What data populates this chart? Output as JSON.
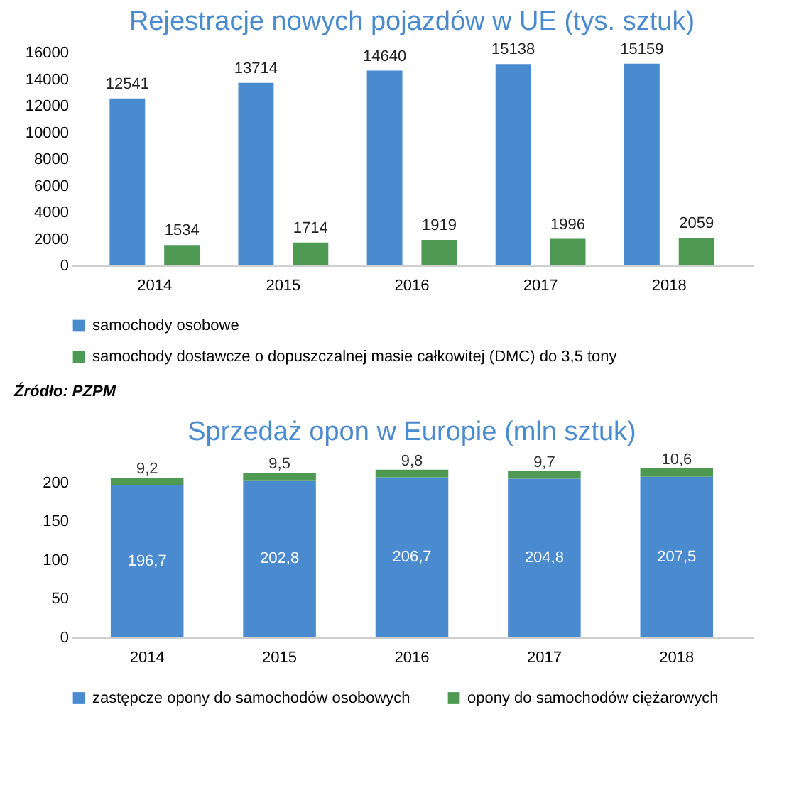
{
  "chart_data": [
    {
      "type": "bar",
      "title": "Rejestracje nowych pojazdów w UE (tys. sztuk)",
      "categories": [
        "2014",
        "2015",
        "2016",
        "2017",
        "2018"
      ],
      "series": [
        {
          "name": "samochody osobowe",
          "color": "#4a8bd0",
          "values": [
            12541,
            13714,
            14640,
            15138,
            15159
          ]
        },
        {
          "name": "samochody dostawcze o dopuszczalnej masie całkowitej (DMC) do 3,5 tony",
          "color": "#4e9a52",
          "values": [
            1534,
            1714,
            1919,
            1996,
            2059
          ]
        }
      ],
      "ylim": [
        0,
        16000
      ],
      "yticks": [
        0,
        2000,
        4000,
        6000,
        8000,
        10000,
        12000,
        14000,
        16000
      ],
      "grid": false,
      "legend": "bottom",
      "data_labels": true,
      "annotations": [
        "Źródło: PZPM"
      ]
    },
    {
      "type": "bar",
      "title": "Sprzedaż opon w Europie (mln sztuk)",
      "categories": [
        "2014",
        "2015",
        "2016",
        "2017",
        "2018"
      ],
      "stacked": true,
      "series": [
        {
          "name": "zastępcze opony do samochodów osobowych",
          "color": "#4a8bd0",
          "values": [
            196.7,
            202.8,
            206.7,
            204.8,
            207.5
          ],
          "value_labels": [
            "196,7",
            "202,8",
            "206,7",
            "204,8",
            "207,5"
          ]
        },
        {
          "name": "opony do samochodów ciężarowych",
          "color": "#4e9a52",
          "values": [
            9.2,
            9.5,
            9.8,
            9.7,
            10.6
          ],
          "value_labels": [
            "9,2",
            "9,5",
            "9,8",
            "9,7",
            "10,6"
          ]
        }
      ],
      "ylim": [
        0,
        220
      ],
      "yticks": [
        0,
        50,
        100,
        150,
        200
      ],
      "grid": false,
      "legend": "bottom"
    }
  ]
}
